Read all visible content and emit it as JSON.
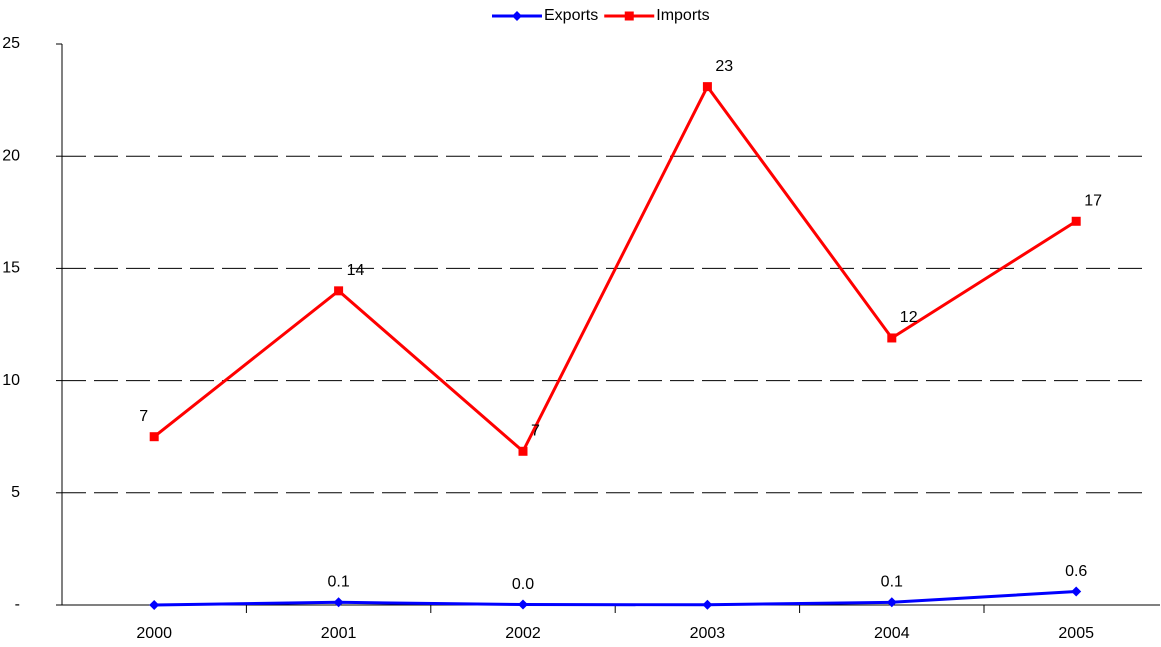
{
  "chart_data": {
    "type": "line",
    "categories": [
      "2000",
      "2001",
      "2002",
      "2003",
      "2004",
      "2005"
    ],
    "series": [
      {
        "name": "Exports",
        "color": "#0000ff",
        "marker": "diamond",
        "values": [
          0.0,
          0.12,
          0.02,
          0.01,
          0.12,
          0.6
        ],
        "value_labels": [
          null,
          "0.1",
          "0.0",
          null,
          "0.1",
          "0.6"
        ]
      },
      {
        "name": "Imports",
        "color": "#ff0000",
        "marker": "square",
        "values": [
          7.5,
          14.0,
          6.85,
          23.1,
          11.9,
          17.1
        ],
        "value_labels": [
          "7",
          "14",
          "7",
          "23",
          "12",
          "17"
        ]
      }
    ],
    "ylim": [
      0,
      25
    ],
    "yticks": [
      {
        "value": 0,
        "label": "-"
      },
      5,
      10,
      15,
      20,
      25
    ],
    "grid": true,
    "legend": "top"
  }
}
